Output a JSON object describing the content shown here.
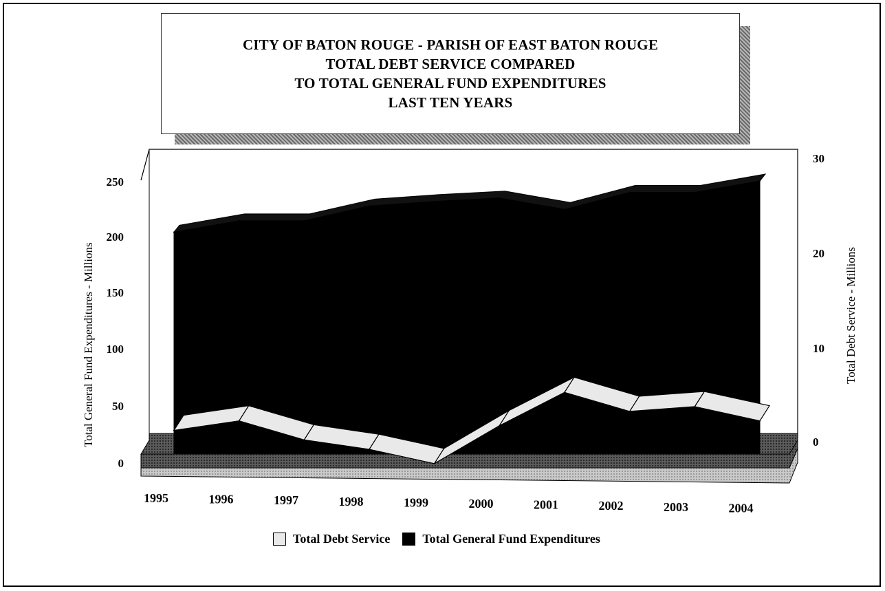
{
  "title_lines": [
    "CITY OF BATON ROUGE - PARISH OF EAST BATON ROUGE",
    "TOTAL DEBT SERVICE COMPARED",
    "TO TOTAL GENERAL FUND EXPENDITURES",
    "LAST TEN YEARS"
  ],
  "legend": {
    "debt_label": "Total Debt Service",
    "gf_label": "Total General Fund Expenditures"
  },
  "colors": {
    "gf_fill": "#000000",
    "debt_fill": "#e9e9e9",
    "floor_dark": "#4a4a4a",
    "floor_light": "#d8d8d8"
  },
  "chart_data": {
    "type": "area",
    "categories": [
      "1995",
      "1996",
      "1997",
      "1998",
      "1999",
      "2000",
      "2001",
      "2002",
      "2003",
      "2004"
    ],
    "series": [
      {
        "name": "Total General Fund Expenditures",
        "axis": "left",
        "values": [
          205,
          215,
          215,
          228,
          232,
          235,
          225,
          240,
          240,
          250
        ]
      },
      {
        "name": "Total Debt Service",
        "axis": "right",
        "values": [
          2.5,
          3.5,
          1.5,
          0.5,
          -1,
          3,
          6.5,
          4.5,
          5,
          3.5
        ]
      }
    ],
    "left_axis": {
      "label": "Total General Fund Expenditures - Millions",
      "ticks": [
        "250",
        "200",
        "150",
        "100",
        "50",
        "0"
      ],
      "ylim": [
        0,
        250
      ]
    },
    "right_axis": {
      "label": "Total Debt Service - Millions",
      "ticks": [
        "30",
        "20",
        "10",
        "0"
      ],
      "ylim": [
        0,
        30
      ]
    },
    "legend_position": "bottom"
  }
}
